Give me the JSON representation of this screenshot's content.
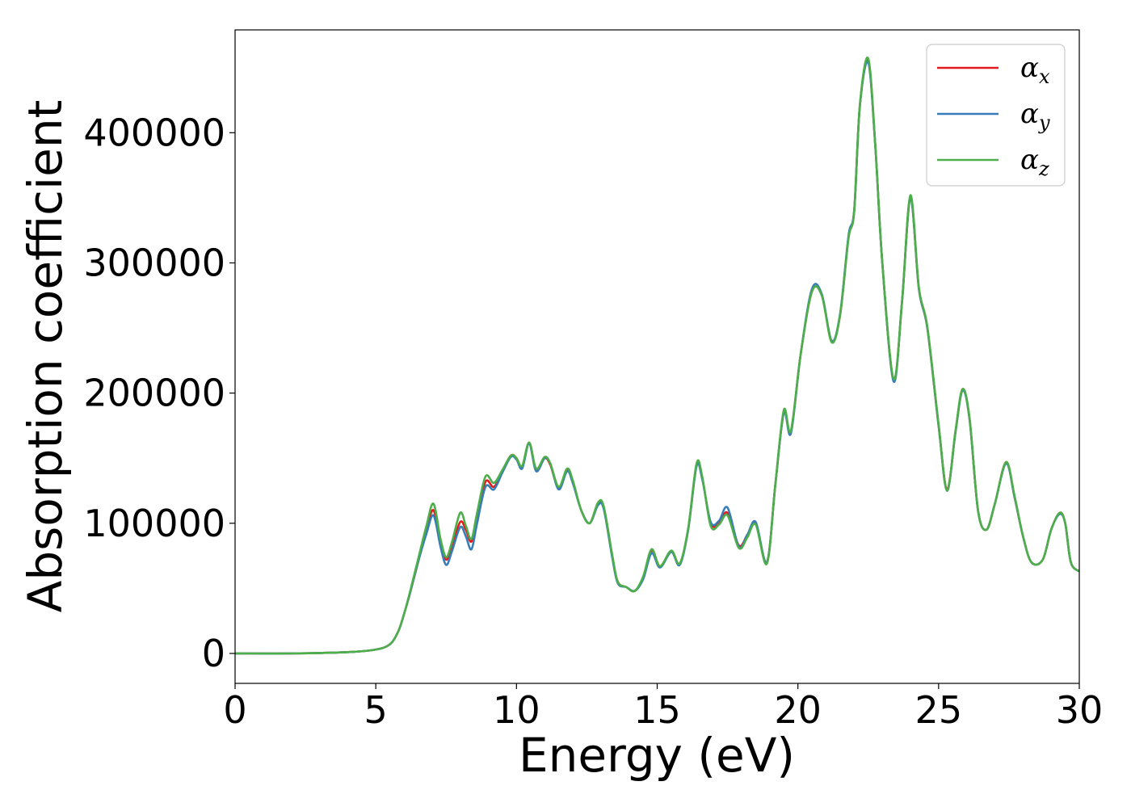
{
  "chart_data": {
    "type": "line",
    "xlabel": "Energy (eV)",
    "ylabel": "Absorption coefficient",
    "xlim": [
      0,
      30
    ],
    "ylim": [
      -23000,
      479000
    ],
    "xticks": [
      "0",
      "5",
      "10",
      "15",
      "20",
      "25",
      "30"
    ],
    "yticks": [
      "0",
      "100000",
      "200000",
      "300000",
      "400000"
    ],
    "grid": false,
    "legend_position": "top-right",
    "series": [
      {
        "name": "α_x",
        "symbol": "α",
        "subscript": "x",
        "color": "#e41a1c",
        "x": [
          0,
          2,
          4,
          5,
          5.5,
          5.8,
          6.0,
          6.2,
          6.5,
          6.8,
          7.05,
          7.3,
          7.5,
          7.7,
          8.0,
          8.2,
          8.4,
          8.6,
          8.9,
          9.2,
          9.5,
          9.8,
          10.0,
          10.2,
          10.45,
          10.7,
          11.0,
          11.2,
          11.5,
          11.8,
          12.0,
          12.3,
          12.6,
          12.9,
          13.1,
          13.4,
          13.6,
          13.9,
          14.2,
          14.5,
          14.8,
          15.1,
          15.5,
          15.8,
          16.1,
          16.4,
          16.6,
          16.9,
          17.2,
          17.5,
          17.9,
          18.2,
          18.5,
          18.9,
          19.2,
          19.5,
          19.75,
          20.1,
          20.5,
          20.85,
          21.2,
          21.5,
          21.8,
          22.0,
          22.2,
          22.5,
          22.75,
          23.0,
          23.4,
          23.7,
          24.0,
          24.3,
          24.6,
          25.0,
          25.3,
          25.6,
          25.85,
          26.1,
          26.4,
          26.7,
          27.0,
          27.4,
          27.7,
          28.0,
          28.3,
          28.7,
          29.0,
          29.3,
          29.5,
          29.7,
          30.0
        ],
        "values": [
          0,
          0,
          1000,
          3000,
          7000,
          17000,
          30000,
          45000,
          70000,
          95000,
          110000,
          85000,
          72000,
          82000,
          101000,
          95000,
          86000,
          105000,
          132000,
          128000,
          140000,
          152000,
          150000,
          143000,
          162000,
          141000,
          150000,
          145000,
          127000,
          141000,
          132000,
          110000,
          100000,
          115000,
          112000,
          75000,
          55000,
          51000,
          48000,
          58000,
          79000,
          67000,
          78000,
          69000,
          95000,
          145000,
          135000,
          100000,
          100000,
          108000,
          83000,
          91000,
          100000,
          70000,
          130000,
          185000,
          170000,
          230000,
          278000,
          275000,
          240000,
          260000,
          320000,
          340000,
          420000,
          455000,
          390000,
          300000,
          210000,
          270000,
          350000,
          280000,
          250000,
          175000,
          126000,
          170000,
          203000,
          180000,
          110000,
          95000,
          115000,
          147000,
          120000,
          90000,
          70000,
          72000,
          95000,
          108000,
          100000,
          70000,
          63000
        ]
      },
      {
        "name": "α_y",
        "symbol": "α",
        "subscript": "y",
        "color": "#377eb8",
        "x": [
          0,
          2,
          4,
          5,
          5.5,
          5.8,
          6.0,
          6.2,
          6.5,
          6.8,
          7.05,
          7.3,
          7.5,
          7.7,
          8.0,
          8.2,
          8.4,
          8.6,
          8.9,
          9.2,
          9.5,
          9.8,
          10.0,
          10.2,
          10.45,
          10.7,
          11.0,
          11.2,
          11.5,
          11.8,
          12.0,
          12.3,
          12.6,
          12.9,
          13.1,
          13.4,
          13.6,
          13.9,
          14.2,
          14.5,
          14.8,
          15.1,
          15.5,
          15.8,
          16.1,
          16.4,
          16.6,
          16.9,
          17.2,
          17.5,
          17.9,
          18.2,
          18.5,
          18.9,
          19.2,
          19.5,
          19.75,
          20.1,
          20.5,
          20.85,
          21.2,
          21.5,
          21.8,
          22.0,
          22.2,
          22.5,
          22.75,
          23.0,
          23.4,
          23.7,
          24.0,
          24.3,
          24.6,
          25.0,
          25.3,
          25.6,
          25.85,
          26.1,
          26.4,
          26.7,
          27.0,
          27.4,
          27.7,
          28.0,
          28.3,
          28.7,
          29.0,
          29.3,
          29.5,
          29.7,
          30.0
        ],
        "values": [
          0,
          0,
          1000,
          3000,
          7000,
          17000,
          30000,
          45000,
          70000,
          92000,
          106000,
          82000,
          68000,
          78000,
          97000,
          90000,
          80000,
          100000,
          128000,
          126000,
          139000,
          151000,
          149000,
          142000,
          161000,
          140000,
          150000,
          146000,
          126000,
          140000,
          131000,
          110000,
          100000,
          114000,
          111000,
          74000,
          54000,
          51000,
          48000,
          57000,
          77000,
          66000,
          78000,
          68000,
          95000,
          144000,
          134000,
          101000,
          102000,
          112000,
          82000,
          91000,
          101000,
          70000,
          130000,
          185000,
          169000,
          230000,
          280000,
          276000,
          240000,
          261000,
          321000,
          340000,
          420000,
          454000,
          390000,
          300000,
          209000,
          270000,
          350000,
          280000,
          250000,
          175000,
          125000,
          170000,
          202000,
          180000,
          110000,
          95000,
          115000,
          146000,
          120000,
          90000,
          70000,
          72000,
          95000,
          107000,
          100000,
          70000,
          63000
        ]
      },
      {
        "name": "α_z",
        "symbol": "α",
        "subscript": "z",
        "color": "#4daf4a",
        "x": [
          0,
          2,
          4,
          5,
          5.5,
          5.8,
          6.0,
          6.2,
          6.5,
          6.8,
          7.05,
          7.3,
          7.5,
          7.7,
          8.0,
          8.2,
          8.4,
          8.6,
          8.9,
          9.2,
          9.5,
          9.8,
          10.0,
          10.2,
          10.45,
          10.7,
          11.0,
          11.2,
          11.5,
          11.8,
          12.0,
          12.3,
          12.6,
          12.9,
          13.1,
          13.4,
          13.6,
          13.9,
          14.2,
          14.5,
          14.8,
          15.1,
          15.5,
          15.8,
          16.1,
          16.4,
          16.6,
          16.9,
          17.2,
          17.5,
          17.9,
          18.2,
          18.5,
          18.9,
          19.2,
          19.5,
          19.75,
          20.1,
          20.5,
          20.85,
          21.2,
          21.5,
          21.8,
          22.0,
          22.2,
          22.5,
          22.75,
          23.0,
          23.4,
          23.7,
          24.0,
          24.3,
          24.6,
          25.0,
          25.3,
          25.6,
          25.85,
          26.1,
          26.4,
          26.7,
          27.0,
          27.4,
          27.7,
          28.0,
          28.3,
          28.7,
          29.0,
          29.3,
          29.5,
          29.7,
          30.0
        ],
        "values": [
          0,
          0,
          1000,
          3000,
          7000,
          17000,
          30000,
          46000,
          72000,
          98000,
          115000,
          88000,
          74000,
          85000,
          108000,
          98000,
          88000,
          108000,
          136000,
          131000,
          141000,
          152000,
          150000,
          144000,
          162000,
          142000,
          151000,
          146000,
          128000,
          142000,
          133000,
          110000,
          100000,
          116000,
          113000,
          76000,
          55000,
          51000,
          48000,
          59000,
          80000,
          67000,
          79000,
          69000,
          96000,
          146000,
          136000,
          98000,
          99000,
          106000,
          81000,
          89000,
          99000,
          69000,
          130000,
          187000,
          171000,
          230000,
          278000,
          275000,
          239000,
          260000,
          319000,
          339000,
          421000,
          457000,
          391000,
          300000,
          211000,
          270000,
          352000,
          281000,
          251000,
          176000,
          125000,
          171000,
          203000,
          181000,
          110000,
          95000,
          115000,
          147000,
          121000,
          90000,
          70000,
          72000,
          95000,
          108000,
          100000,
          70000,
          63000
        ]
      }
    ]
  }
}
